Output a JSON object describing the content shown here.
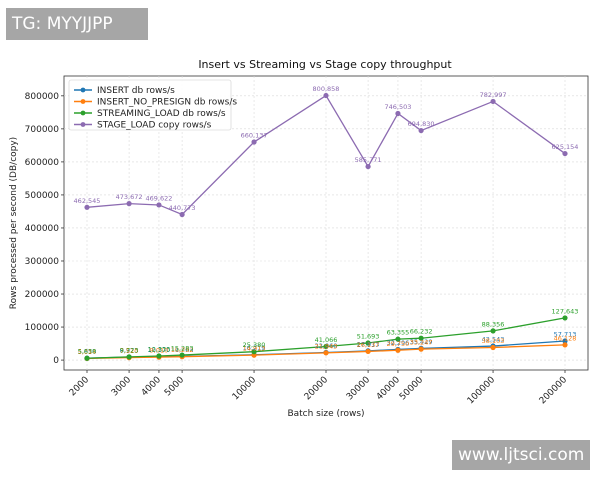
{
  "watermarks": {
    "top": "TG: MYYJJPP",
    "bottom": "www.ljtsci.com"
  },
  "chart_data": {
    "type": "line",
    "title": "Insert vs Streaming vs Stage copy throughput",
    "xlabel": "Batch size (rows)",
    "ylabel": "Rows processed per second (DB/copy)",
    "xscale": "log",
    "x": [
      2000,
      3000,
      4000,
      5000,
      10000,
      20000,
      30000,
      40000,
      50000,
      100000,
      200000
    ],
    "x_tick_labels": [
      "2000",
      "3000",
      "4000",
      "5000",
      "10000",
      "20000",
      "30000",
      "40000",
      "50000",
      "100000",
      "200000"
    ],
    "ylim": [
      -30000,
      860000
    ],
    "y_ticks": [
      0,
      100000,
      200000,
      300000,
      400000,
      500000,
      600000,
      700000,
      800000
    ],
    "y_tick_labels": [
      "0",
      "100000",
      "200000",
      "300000",
      "400000",
      "500000",
      "600000",
      "700000",
      "800000"
    ],
    "grid": true,
    "legend_position": "upper-left",
    "series": [
      {
        "name": "INSERT db rows/s",
        "color": "#1f77b4",
        "values": [
          5850,
          8973,
          10370,
          11263,
          16219,
          22960,
          27913,
          32296,
          35429,
          42543,
          57713
        ],
        "labels": [
          "5,850",
          "8,973",
          "10,370",
          "11,263",
          "16,219",
          "22,960",
          "27,913",
          "32,296",
          "35,429",
          "42,543",
          "57,713"
        ]
      },
      {
        "name": "INSERT_NO_PRESIGN db rows/s",
        "color": "#ff7f0e",
        "values": [
          5014,
          7520,
          9010,
          10232,
          14913,
          21943,
          26137,
          29750,
          33247,
          38103,
          46128
        ],
        "labels": [
          "5,014",
          "7,520",
          "9,010",
          "10,232",
          "14,913",
          "21,943",
          "26,137",
          "29,750",
          "33,247",
          "38,103",
          "46,128"
        ]
      },
      {
        "name": "STREAMING_LOAD db rows/s",
        "color": "#2ca02c",
        "values": [
          5638,
          9723,
          12333,
          15283,
          25380,
          41066,
          51693,
          63355,
          66232,
          88356,
          127643
        ],
        "labels": [
          "5,638",
          "9,723",
          "12,333",
          "15,283",
          "25,380",
          "41,066",
          "51,693",
          "63,355",
          "66,232",
          "88,356",
          "127,643"
        ]
      },
      {
        "name": "STAGE_LOAD copy rows/s",
        "color": "#8c6bb1",
        "values": [
          462545,
          473672,
          469622,
          440773,
          660137,
          800858,
          585771,
          746503,
          694830,
          782997,
          625154
        ],
        "labels": [
          "462,545",
          "473,672",
          "469,622",
          "440,773",
          "660,137",
          "800,858",
          "585,771",
          "746,503",
          "694,830",
          "782,997",
          "625,154"
        ]
      }
    ]
  }
}
